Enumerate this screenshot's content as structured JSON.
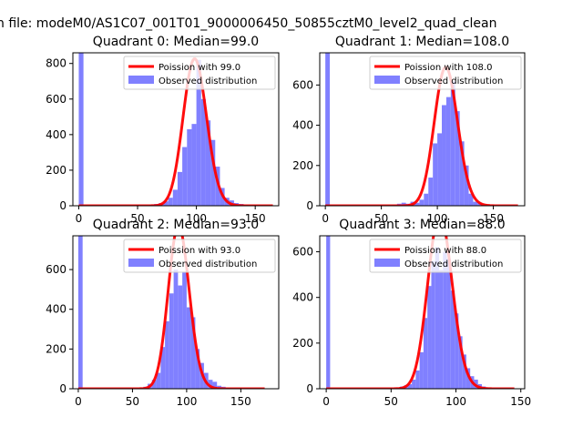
{
  "figure": {
    "suptitle": "n file: modeM0/AS1C07_001T01_9000006450_50855cztM0_level2_quad_clean"
  },
  "colors": {
    "fit_line": "#ff0000",
    "hist_fill": "#8080ff",
    "axes": "#000000",
    "legend_border": "#cccccc"
  },
  "chart_data": [
    {
      "type": "bar",
      "title": "Quadrant 0: Median=99.0",
      "xlim": [
        -5,
        170
      ],
      "ylim": [
        0,
        860
      ],
      "xticks": [
        0,
        50,
        100,
        150
      ],
      "yticks": [
        0,
        200,
        400,
        600,
        800
      ],
      "legend": {
        "placement": "top-right",
        "entries": [
          "Poission with 99.0",
          "Observed distribution"
        ]
      },
      "fit": {
        "label": "Poission with 99.0",
        "mean": 99.0,
        "x_range": [
          0,
          165
        ]
      },
      "series": [
        {
          "name": "Observed distribution",
          "bin_width": 4,
          "bins": [
            [
              0,
              860
            ],
            [
              60,
              5
            ],
            [
              64,
              10
            ],
            [
              68,
              15
            ],
            [
              72,
              25
            ],
            [
              76,
              45
            ],
            [
              80,
              90
            ],
            [
              84,
              190
            ],
            [
              88,
              330
            ],
            [
              92,
              430
            ],
            [
              96,
              460
            ],
            [
              100,
              820
            ],
            [
              104,
              600
            ],
            [
              108,
              480
            ],
            [
              112,
              370
            ],
            [
              116,
              220
            ],
            [
              120,
              100
            ],
            [
              124,
              45
            ],
            [
              128,
              30
            ],
            [
              132,
              15
            ],
            [
              136,
              10
            ],
            [
              140,
              5
            ]
          ]
        }
      ]
    },
    {
      "type": "bar",
      "title": "Quadrant 1: Median=108.0",
      "xlim": [
        -5,
        178
      ],
      "ylim": [
        0,
        760
      ],
      "xticks": [
        0,
        50,
        100,
        150
      ],
      "yticks": [
        0,
        200,
        400,
        600
      ],
      "legend": {
        "placement": "top-right",
        "entries": [
          "Poission with 108.0",
          "Observed distribution"
        ]
      },
      "fit": {
        "label": "Poission with 108.0",
        "mean": 108.0,
        "x_range": [
          0,
          172
        ]
      },
      "series": [
        {
          "name": "Observed distribution",
          "bin_width": 4,
          "bins": [
            [
              0,
              760
            ],
            [
              60,
              5
            ],
            [
              64,
              10
            ],
            [
              68,
              15
            ],
            [
              72,
              10
            ],
            [
              76,
              20
            ],
            [
              80,
              15
            ],
            [
              84,
              30
            ],
            [
              88,
              60
            ],
            [
              92,
              140
            ],
            [
              96,
              310
            ],
            [
              100,
              360
            ],
            [
              104,
              500
            ],
            [
              108,
              540
            ],
            [
              112,
              620
            ],
            [
              116,
              470
            ],
            [
              120,
              320
            ],
            [
              124,
              200
            ],
            [
              128,
              60
            ],
            [
              132,
              20
            ],
            [
              136,
              15
            ],
            [
              140,
              5
            ]
          ]
        }
      ]
    },
    {
      "type": "bar",
      "title": "Quadrant 2: Median=93.0",
      "xlim": [
        -5,
        185
      ],
      "ylim": [
        0,
        770
      ],
      "xticks": [
        0,
        50,
        100,
        150
      ],
      "yticks": [
        0,
        200,
        400,
        600
      ],
      "legend": {
        "placement": "top-right",
        "entries": [
          "Poission with 93.0",
          "Observed distribution"
        ]
      },
      "fit": {
        "label": "Poission with 93.0",
        "mean": 93.0,
        "x_range": [
          0,
          172
        ]
      },
      "series": [
        {
          "name": "Observed distribution",
          "bin_width": 4,
          "bins": [
            [
              0,
              770
            ],
            [
              60,
              10
            ],
            [
              64,
              25
            ],
            [
              68,
              45
            ],
            [
              72,
              80
            ],
            [
              76,
              210
            ],
            [
              80,
              340
            ],
            [
              84,
              480
            ],
            [
              88,
              600
            ],
            [
              92,
              520
            ],
            [
              96,
              590
            ],
            [
              100,
              410
            ],
            [
              104,
              360
            ],
            [
              108,
              200
            ],
            [
              112,
              130
            ],
            [
              116,
              80
            ],
            [
              120,
              45
            ],
            [
              124,
              35
            ],
            [
              128,
              15
            ],
            [
              132,
              10
            ],
            [
              136,
              5
            ]
          ]
        }
      ]
    },
    {
      "type": "bar",
      "title": "Quadrant 3: Median=88.0",
      "xlim": [
        -5,
        153
      ],
      "ylim": [
        0,
        670
      ],
      "xticks": [
        0,
        50,
        100,
        150
      ],
      "yticks": [
        0,
        200,
        400,
        600
      ],
      "legend": {
        "placement": "top-right",
        "entries": [
          "Poission with 88.0",
          "Observed distribution"
        ]
      },
      "fit": {
        "label": "Poission with 88.0",
        "mean": 88.0,
        "x_range": [
          0,
          145
        ]
      },
      "series": [
        {
          "name": "Observed distribution",
          "bin_width": 3,
          "bins": [
            [
              0,
              670
            ],
            [
              54,
              5
            ],
            [
              57,
              10
            ],
            [
              60,
              15
            ],
            [
              63,
              20
            ],
            [
              66,
              40
            ],
            [
              69,
              80
            ],
            [
              72,
              160
            ],
            [
              75,
              310
            ],
            [
              78,
              450
            ],
            [
              81,
              560
            ],
            [
              84,
              620
            ],
            [
              87,
              520
            ],
            [
              90,
              600
            ],
            [
              93,
              570
            ],
            [
              96,
              430
            ],
            [
              99,
              330
            ],
            [
              102,
              230
            ],
            [
              105,
              150
            ],
            [
              108,
              90
            ],
            [
              111,
              55
            ],
            [
              114,
              40
            ],
            [
              117,
              20
            ],
            [
              120,
              10
            ],
            [
              123,
              5
            ]
          ]
        }
      ]
    }
  ]
}
